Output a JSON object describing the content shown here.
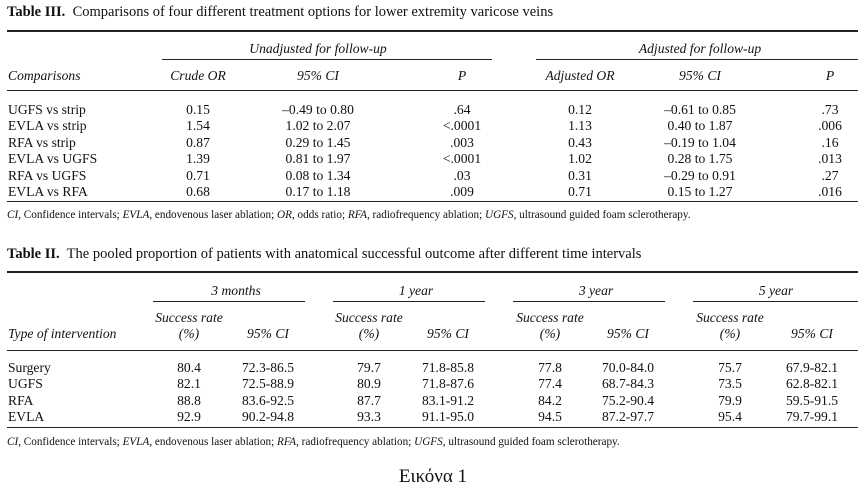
{
  "table3": {
    "caption_label": "Table III.",
    "caption_text": "Comparisons of four different treatment options for lower extremity varicose veins",
    "group_unadjusted": "Unadjusted for follow-up",
    "group_adjusted": "Adjusted for follow-up",
    "headers": [
      "Comparisons",
      "Crude OR",
      "95% CI",
      "P",
      "Adjusted OR",
      "95% CI",
      "P"
    ],
    "rows": [
      [
        "UGFS vs strip",
        "0.15",
        "–0.49 to 0.80",
        ".64",
        "0.12",
        "–0.61 to 0.85",
        ".73"
      ],
      [
        "EVLA vs strip",
        "1.54",
        "1.02 to 2.07",
        "<.0001",
        "1.13",
        "0.40 to 1.87",
        ".006"
      ],
      [
        "RFA vs strip",
        "0.87",
        "0.29 to 1.45",
        ".003",
        "0.43",
        "–0.19 to 1.04",
        ".16"
      ],
      [
        "EVLA vs UGFS",
        "1.39",
        "0.81 to 1.97",
        "<.0001",
        "1.02",
        "0.28 to 1.75",
        ".013"
      ],
      [
        "RFA vs UGFS",
        "0.71",
        "0.08 to 1.34",
        ".03",
        "0.31",
        "–0.29 to 0.91",
        ".27"
      ],
      [
        "EVLA vs RFA",
        "0.68",
        "0.17 to 1.18",
        ".009",
        "0.71",
        "0.15 to 1.27",
        ".016"
      ]
    ],
    "footnote": [
      {
        "abbr": "CI",
        "def": ", Confidence intervals; "
      },
      {
        "abbr": "EVLA",
        "def": ", endovenous laser ablation; "
      },
      {
        "abbr": "OR",
        "def": ", odds ratio; "
      },
      {
        "abbr": "RFA",
        "def": ", radiofrequency ablation; "
      },
      {
        "abbr": "UGFS",
        "def": ", ultrasound guided foam sclerotherapy."
      }
    ]
  },
  "table2": {
    "caption_label": "Table II.",
    "caption_text": "The pooled proportion of patients with anatomical successful outcome after different time intervals",
    "groups": [
      "3 months",
      "1 year",
      "3 year",
      "5 year"
    ],
    "sub_success_line1": "Success rate",
    "sub_success_line2": "(%)",
    "sub_ci": "95% CI",
    "first_header": "Type of intervention",
    "rows": [
      [
        "Surgery",
        "80.4",
        "72.3-86.5",
        "79.7",
        "71.8-85.8",
        "77.8",
        "70.0-84.0",
        "75.7",
        "67.9-82.1"
      ],
      [
        "UGFS",
        "82.1",
        "72.5-88.9",
        "80.9",
        "71.8-87.6",
        "77.4",
        "68.7-84.3",
        "73.5",
        "62.8-82.1"
      ],
      [
        "RFA",
        "88.8",
        "83.6-92.5",
        "87.7",
        "83.1-91.2",
        "84.2",
        "75.2-90.4",
        "79.9",
        "59.5-91.5"
      ],
      [
        "EVLA",
        "92.9",
        "90.2-94.8",
        "93.3",
        "91.1-95.0",
        "94.5",
        "87.2-97.7",
        "95.4",
        "79.7-99.1"
      ]
    ],
    "footnote": [
      {
        "abbr": "CI",
        "def": ", Confidence intervals; "
      },
      {
        "abbr": "EVLA",
        "def": ", endovenous laser ablation; "
      },
      {
        "abbr": "RFA",
        "def": ", radiofrequency ablation; "
      },
      {
        "abbr": "UGFS",
        "def": ", ultrasound guided foam sclerotherapy."
      }
    ]
  },
  "figure_caption": "Εικόνα 1"
}
